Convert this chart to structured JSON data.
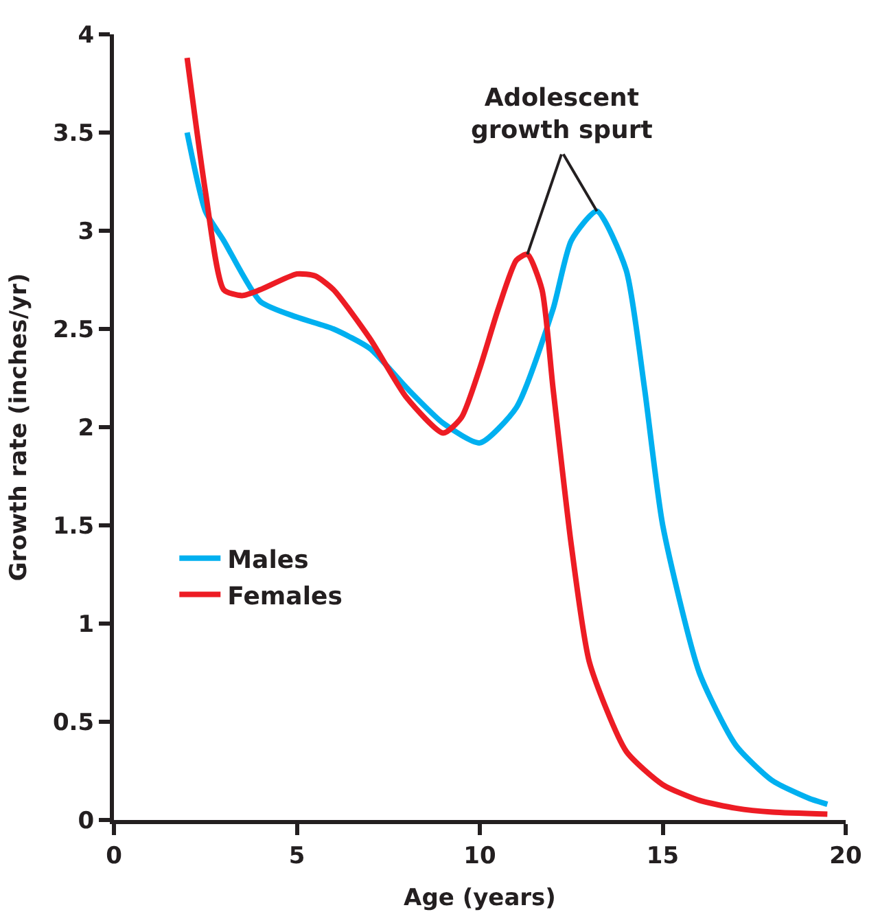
{
  "chart_data": {
    "type": "line",
    "xlabel": "Age (years)",
    "ylabel": "Growth rate (inches/yr)",
    "xlim": [
      0,
      20
    ],
    "xticks": [
      0,
      5,
      10,
      15,
      20
    ],
    "ylim": [
      0,
      4
    ],
    "yticks": [
      0,
      0.5,
      1,
      1.5,
      2,
      2.5,
      3,
      3.5,
      4
    ],
    "legend": "left",
    "marker": "none",
    "line_style": "solid",
    "annotations": [
      {
        "text": "Adolescent\ngrowth spurt",
        "x": 13.2,
        "y": 3.1
      }
    ],
    "series": [
      {
        "name": "Males",
        "color": "#00b0f0",
        "x": [
          2,
          2.5,
          3,
          4,
          5,
          6,
          7,
          8,
          9,
          10,
          11,
          12,
          12.5,
          13.2,
          14,
          14.5,
          15,
          16,
          17,
          18,
          19,
          19.5
        ],
        "values": [
          3.5,
          3.1,
          2.95,
          2.64,
          2.56,
          2.5,
          2.4,
          2.2,
          2.02,
          1.92,
          2.1,
          2.6,
          2.95,
          3.1,
          2.8,
          2.2,
          1.5,
          0.75,
          0.38,
          0.2,
          0.11,
          0.08
        ]
      },
      {
        "name": "Females",
        "color": "#ed1c24",
        "x": [
          2,
          2.5,
          3,
          3.5,
          4,
          5,
          5.5,
          6,
          7,
          8,
          9,
          9.5,
          10,
          10.5,
          11,
          11.3,
          11.7,
          12,
          12.5,
          13,
          14,
          15,
          16,
          17,
          18,
          19.5
        ],
        "values": [
          3.88,
          3.2,
          2.7,
          2.67,
          2.7,
          2.78,
          2.77,
          2.7,
          2.45,
          2.15,
          1.97,
          2.05,
          2.3,
          2.6,
          2.85,
          2.88,
          2.7,
          2.2,
          1.4,
          0.8,
          0.35,
          0.18,
          0.1,
          0.06,
          0.04,
          0.03
        ]
      }
    ]
  }
}
